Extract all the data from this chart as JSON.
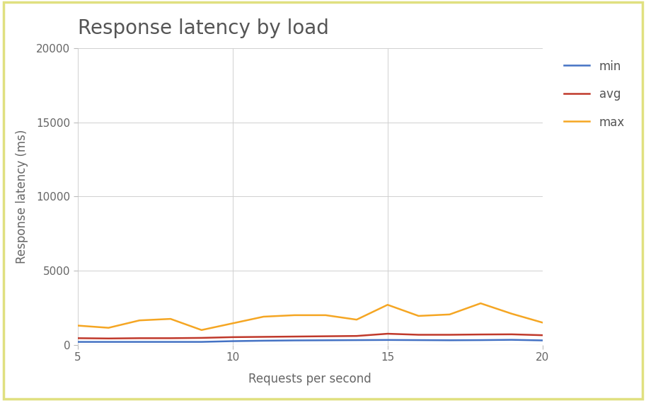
{
  "title": "Response latency by load",
  "xlabel": "Requests per second",
  "ylabel": "Response latency (ms)",
  "xlim": [
    5,
    20
  ],
  "ylim": [
    0,
    20000
  ],
  "yticks": [
    0,
    5000,
    10000,
    15000,
    20000
  ],
  "xticks": [
    5,
    10,
    15,
    20
  ],
  "grid_color": "#d0d0d0",
  "background_color": "#ffffff",
  "border_color": "#e0e080",
  "x": [
    5,
    6,
    7,
    8,
    9,
    10,
    11,
    12,
    13,
    14,
    15,
    16,
    17,
    18,
    19,
    20
  ],
  "min": [
    200,
    200,
    200,
    200,
    200,
    250,
    280,
    300,
    310,
    320,
    330,
    320,
    310,
    320,
    340,
    300
  ],
  "avg": [
    450,
    430,
    450,
    450,
    470,
    520,
    540,
    560,
    580,
    600,
    750,
    680,
    680,
    700,
    710,
    650
  ],
  "max": [
    1300,
    1150,
    1650,
    1750,
    1000,
    1450,
    1900,
    2000,
    2000,
    1700,
    2700,
    1950,
    2050,
    2800,
    2100,
    1500
  ],
  "min_color": "#4472c4",
  "avg_color": "#c0392b",
  "max_color": "#f5a623",
  "min_label": "min",
  "avg_label": "avg",
  "max_label": "max",
  "line_width": 1.8,
  "title_fontsize": 20,
  "axis_label_fontsize": 12,
  "tick_fontsize": 11,
  "legend_fontsize": 12
}
